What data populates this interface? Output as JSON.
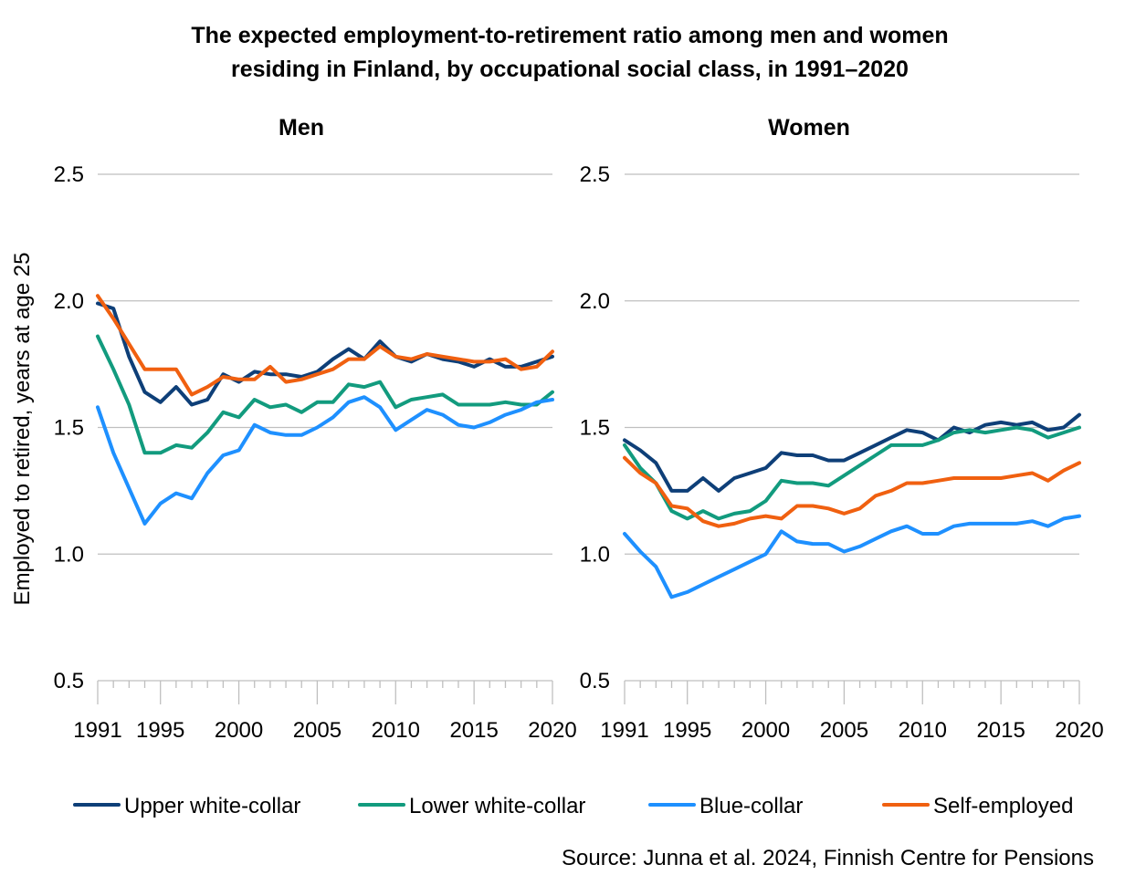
{
  "chart_data": [
    {
      "type": "line",
      "panel": "Men",
      "title": "Men",
      "xlabel": "",
      "ylabel": "Employed to retired, years at age 25",
      "ylim": [
        0.5,
        2.5
      ],
      "yticks": [
        "0.5",
        "1.0",
        "1.5",
        "2.0",
        "2.5"
      ],
      "xlim": [
        1991,
        2020
      ],
      "xticks": [
        "1991",
        "1995",
        "2000",
        "2005",
        "2010",
        "2015",
        "2020"
      ],
      "grid": true,
      "x": [
        1991,
        1992,
        1993,
        1994,
        1995,
        1996,
        1997,
        1998,
        1999,
        2000,
        2001,
        2002,
        2003,
        2004,
        2005,
        2006,
        2007,
        2008,
        2009,
        2010,
        2011,
        2012,
        2013,
        2014,
        2015,
        2016,
        2017,
        2018,
        2019,
        2020
      ],
      "series": [
        {
          "name": "Upper white-collar",
          "color": "#0E3F78",
          "values": [
            1.99,
            1.97,
            1.78,
            1.64,
            1.6,
            1.66,
            1.59,
            1.61,
            1.71,
            1.68,
            1.72,
            1.71,
            1.71,
            1.7,
            1.72,
            1.77,
            1.81,
            1.77,
            1.84,
            1.78,
            1.76,
            1.79,
            1.77,
            1.76,
            1.74,
            1.77,
            1.74,
            1.74,
            1.76,
            1.78
          ]
        },
        {
          "name": "Lower white-collar",
          "color": "#129B7E",
          "values": [
            1.86,
            1.73,
            1.59,
            1.4,
            1.4,
            1.43,
            1.42,
            1.48,
            1.56,
            1.54,
            1.61,
            1.58,
            1.59,
            1.56,
            1.6,
            1.6,
            1.67,
            1.66,
            1.68,
            1.58,
            1.61,
            1.62,
            1.63,
            1.59,
            1.59,
            1.59,
            1.6,
            1.59,
            1.59,
            1.64
          ]
        },
        {
          "name": "Blue-collar",
          "color": "#1E90FF",
          "values": [
            1.58,
            1.4,
            1.26,
            1.12,
            1.2,
            1.24,
            1.22,
            1.32,
            1.39,
            1.41,
            1.51,
            1.48,
            1.47,
            1.47,
            1.5,
            1.54,
            1.6,
            1.62,
            1.58,
            1.49,
            1.53,
            1.57,
            1.55,
            1.51,
            1.5,
            1.52,
            1.55,
            1.57,
            1.6,
            1.61
          ]
        },
        {
          "name": "Self-employed",
          "color": "#F06010",
          "values": [
            2.02,
            1.93,
            1.83,
            1.73,
            1.73,
            1.73,
            1.63,
            1.66,
            1.7,
            1.69,
            1.69,
            1.74,
            1.68,
            1.69,
            1.71,
            1.73,
            1.77,
            1.77,
            1.82,
            1.78,
            1.77,
            1.79,
            1.78,
            1.77,
            1.76,
            1.76,
            1.77,
            1.73,
            1.74,
            1.8
          ]
        }
      ]
    },
    {
      "type": "line",
      "panel": "Women",
      "title": "Women",
      "xlabel": "",
      "ylabel": "",
      "ylim": [
        0.5,
        2.5
      ],
      "yticks": [
        "0.5",
        "1.0",
        "1.5",
        "2.0",
        "2.5"
      ],
      "xlim": [
        1991,
        2020
      ],
      "xticks": [
        "1991",
        "1995",
        "2000",
        "2005",
        "2010",
        "2015",
        "2020"
      ],
      "grid": true,
      "x": [
        1991,
        1992,
        1993,
        1994,
        1995,
        1996,
        1997,
        1998,
        1999,
        2000,
        2001,
        2002,
        2003,
        2004,
        2005,
        2006,
        2007,
        2008,
        2009,
        2010,
        2011,
        2012,
        2013,
        2014,
        2015,
        2016,
        2017,
        2018,
        2019,
        2020
      ],
      "series": [
        {
          "name": "Upper white-collar",
          "color": "#0E3F78",
          "values": [
            1.45,
            1.41,
            1.36,
            1.25,
            1.25,
            1.3,
            1.25,
            1.3,
            1.32,
            1.34,
            1.4,
            1.39,
            1.39,
            1.37,
            1.37,
            1.4,
            1.43,
            1.46,
            1.49,
            1.48,
            1.45,
            1.5,
            1.48,
            1.51,
            1.52,
            1.51,
            1.52,
            1.49,
            1.5,
            1.55
          ]
        },
        {
          "name": "Lower white-collar",
          "color": "#129B7E",
          "values": [
            1.43,
            1.34,
            1.28,
            1.17,
            1.14,
            1.17,
            1.14,
            1.16,
            1.17,
            1.21,
            1.29,
            1.28,
            1.28,
            1.27,
            1.31,
            1.35,
            1.39,
            1.43,
            1.43,
            1.43,
            1.45,
            1.48,
            1.49,
            1.48,
            1.49,
            1.5,
            1.49,
            1.46,
            1.48,
            1.5
          ]
        },
        {
          "name": "Blue-collar",
          "color": "#1E90FF",
          "values": [
            1.08,
            1.01,
            0.95,
            0.83,
            0.85,
            0.88,
            0.91,
            0.94,
            0.97,
            1.0,
            1.09,
            1.05,
            1.04,
            1.04,
            1.01,
            1.03,
            1.06,
            1.09,
            1.11,
            1.08,
            1.08,
            1.11,
            1.12,
            1.12,
            1.12,
            1.12,
            1.13,
            1.11,
            1.14,
            1.15
          ]
        },
        {
          "name": "Self-employed",
          "color": "#F06010",
          "values": [
            1.38,
            1.32,
            1.28,
            1.19,
            1.18,
            1.13,
            1.11,
            1.12,
            1.14,
            1.15,
            1.14,
            1.19,
            1.19,
            1.18,
            1.16,
            1.18,
            1.23,
            1.25,
            1.28,
            1.28,
            1.29,
            1.3,
            1.3,
            1.3,
            1.3,
            1.31,
            1.32,
            1.29,
            1.33,
            1.36
          ]
        }
      ]
    }
  ],
  "figure": {
    "title_line1": "The expected employment-to-retirement ratio among men and women",
    "title_line2": "residing in Finland, by occupational social class, in 1991–2020",
    "ylabel": "Employed to retired, years at age 25",
    "legend": {
      "placement": "bottom",
      "items": [
        {
          "label": "Upper white-collar",
          "color": "#0E3F78"
        },
        {
          "label": "Lower white-collar",
          "color": "#129B7E"
        },
        {
          "label": "Blue-collar",
          "color": "#1E90FF"
        },
        {
          "label": "Self-employed",
          "color": "#F06010"
        }
      ]
    },
    "source": "Source: Junna et al. 2024, Finnish Centre for Pensions"
  }
}
